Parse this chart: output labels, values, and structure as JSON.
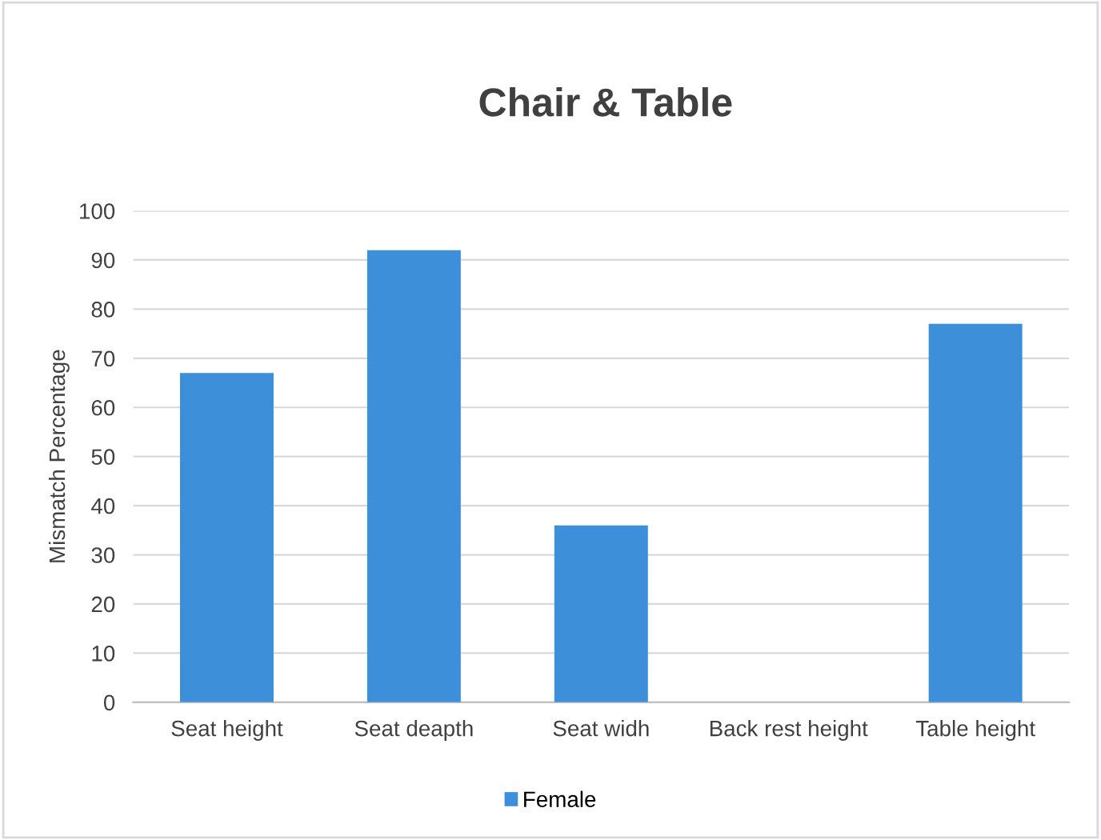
{
  "chart_data": {
    "type": "bar",
    "title": "Chair & Table",
    "ylabel": "Mismatch Percentage",
    "categories": [
      "Seat height",
      "Seat deapth",
      "Seat widh",
      "Back rest height",
      "Table height"
    ],
    "series": [
      {
        "name": "Female",
        "color": "#3d8fd9",
        "values": [
          67,
          92,
          36,
          0,
          77
        ]
      }
    ],
    "ylim": [
      0,
      100
    ],
    "yticks": [
      0,
      10,
      20,
      30,
      40,
      50,
      60,
      70,
      80,
      90,
      100
    ],
    "grid": "y",
    "legend": "bottom"
  }
}
